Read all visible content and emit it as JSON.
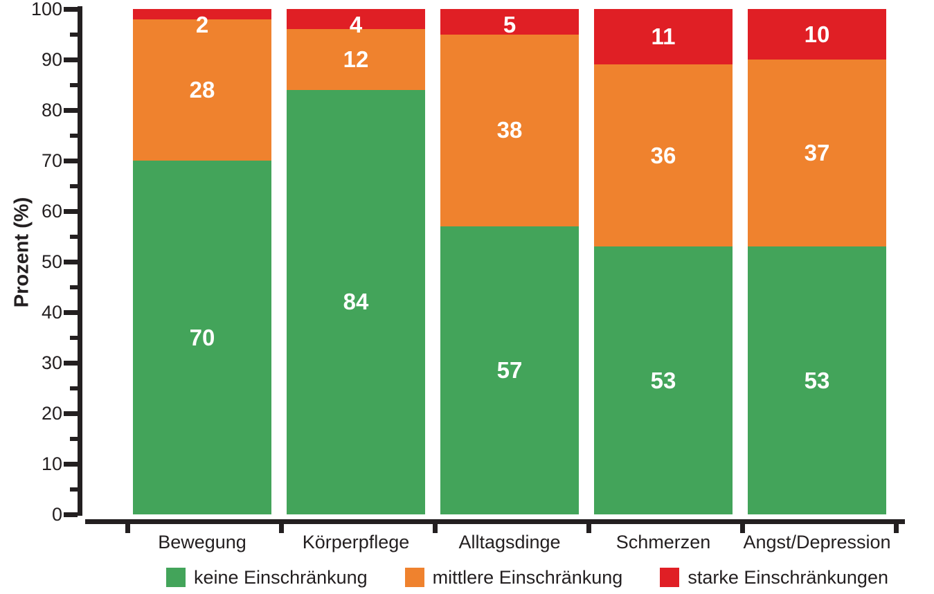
{
  "chart_data": {
    "type": "bar",
    "stacked": true,
    "orientation": "vertical",
    "title": "",
    "xlabel": "",
    "ylabel": "Prozent (%)",
    "ylim": [
      0,
      100
    ],
    "y_major_ticks": [
      0,
      10,
      20,
      30,
      40,
      50,
      60,
      70,
      80,
      90,
      100
    ],
    "y_minor_step": 5,
    "grid": false,
    "legend_position": "bottom",
    "value_label_color": "#ffffff",
    "categories": [
      "Bewegung",
      "Körperpflege",
      "Alltagsdinge",
      "Schmerzen",
      "Angst/Depression"
    ],
    "series": [
      {
        "name": "keine Einschränkung",
        "color": "#43a45a",
        "values": [
          70,
          84,
          57,
          53,
          53
        ]
      },
      {
        "name": "mittlere Einschränkung",
        "color": "#ef822e",
        "values": [
          28,
          12,
          38,
          36,
          37
        ]
      },
      {
        "name": "starke Einschränkungen",
        "color": "#e01f25",
        "values": [
          2,
          4,
          5,
          11,
          10
        ]
      }
    ]
  },
  "colors": {
    "axis": "#231f20",
    "text": "#231f20",
    "background": "#ffffff"
  }
}
